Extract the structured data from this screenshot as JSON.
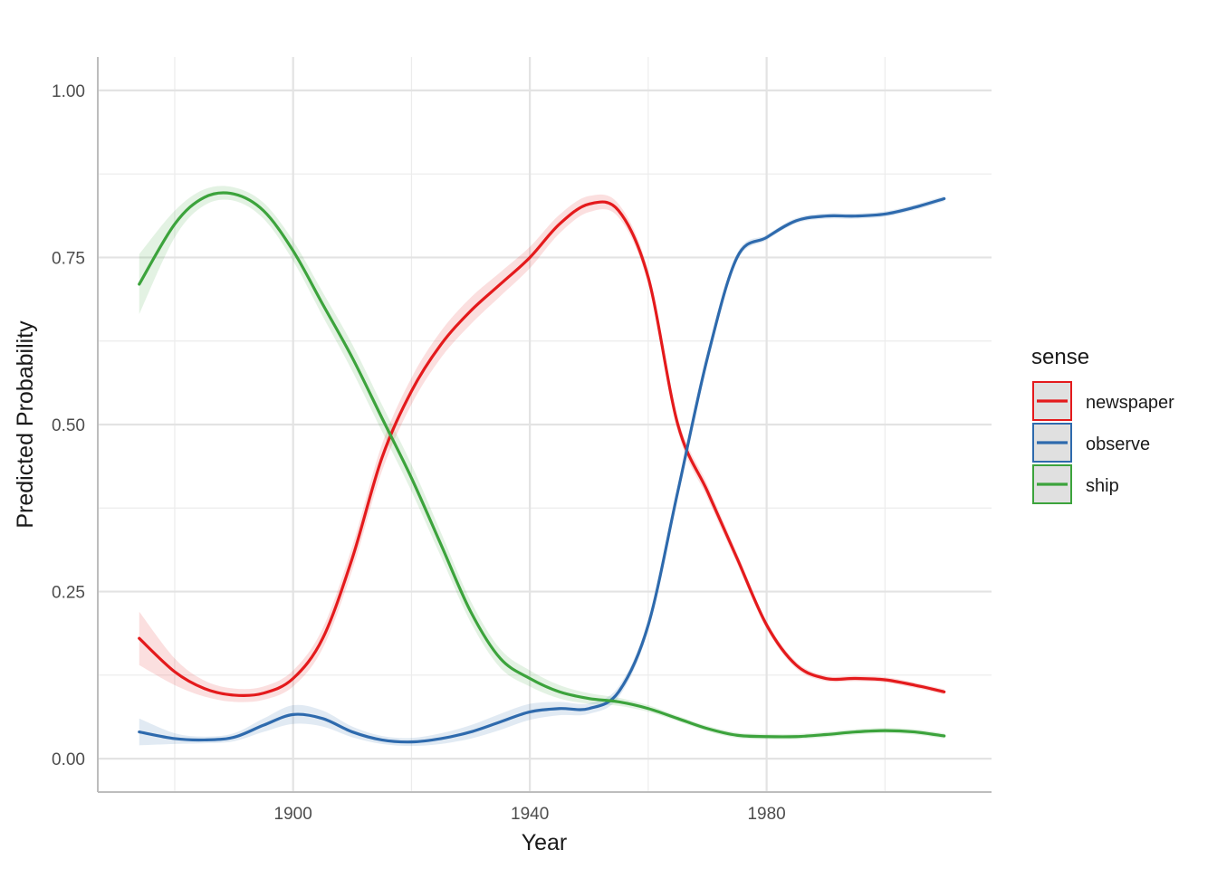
{
  "chart_data": {
    "type": "line",
    "title": "",
    "xlabel": "Year",
    "ylabel": "Predicted Probability",
    "xlim": [
      1867,
      2018
    ],
    "ylim": [
      -0.05,
      1.05
    ],
    "x_ticks": [
      1900,
      1940,
      1980
    ],
    "x_tick_labels": [
      "1900",
      "1940",
      "1980"
    ],
    "y_ticks": [
      0,
      0.25,
      0.5,
      0.75,
      1.0
    ],
    "y_tick_labels": [
      "0.00",
      "0.25",
      "0.50",
      "0.75",
      "1.00"
    ],
    "grid": true,
    "legend": {
      "title": "sense",
      "position": "right"
    },
    "x": [
      1874,
      1880,
      1885,
      1890,
      1895,
      1900,
      1905,
      1910,
      1915,
      1920,
      1925,
      1930,
      1935,
      1940,
      1945,
      1950,
      1955,
      1960,
      1965,
      1970,
      1975,
      1980,
      1985,
      1990,
      1995,
      2000,
      2005,
      2010
    ],
    "series": [
      {
        "name": "newspaper",
        "color": "#e41a1c",
        "values": [
          0.18,
          0.13,
          0.105,
          0.095,
          0.098,
          0.12,
          0.18,
          0.3,
          0.45,
          0.55,
          0.62,
          0.67,
          0.71,
          0.75,
          0.8,
          0.83,
          0.82,
          0.72,
          0.5,
          0.4,
          0.3,
          0.2,
          0.14,
          0.12,
          0.12,
          0.118,
          0.11,
          0.1
        ],
        "ci_width": [
          0.04,
          0.02,
          0.012,
          0.01,
          0.01,
          0.012,
          0.015,
          0.018,
          0.02,
          0.02,
          0.02,
          0.02,
          0.018,
          0.016,
          0.014,
          0.012,
          0.01,
          0.01,
          0.01,
          0.01,
          0.008,
          0.006,
          0.005,
          0.004,
          0.004,
          0.004,
          0.004,
          0.004
        ]
      },
      {
        "name": "observe",
        "color": "#2e6aad",
        "values": [
          0.04,
          0.03,
          0.028,
          0.032,
          0.05,
          0.066,
          0.06,
          0.04,
          0.028,
          0.025,
          0.03,
          0.04,
          0.055,
          0.07,
          0.075,
          0.075,
          0.1,
          0.2,
          0.4,
          0.6,
          0.75,
          0.78,
          0.805,
          0.812,
          0.812,
          0.815,
          0.825,
          0.838
        ],
        "ci_width": [
          0.02,
          0.008,
          0.005,
          0.006,
          0.01,
          0.014,
          0.012,
          0.008,
          0.006,
          0.006,
          0.008,
          0.01,
          0.012,
          0.012,
          0.01,
          0.008,
          0.008,
          0.008,
          0.008,
          0.008,
          0.006,
          0.004,
          0.004,
          0.004,
          0.004,
          0.004,
          0.004,
          0.004
        ]
      },
      {
        "name": "ship",
        "color": "#3ca33c",
        "values": [
          0.71,
          0.8,
          0.84,
          0.845,
          0.82,
          0.76,
          0.68,
          0.6,
          0.51,
          0.42,
          0.32,
          0.22,
          0.15,
          0.12,
          0.1,
          0.09,
          0.085,
          0.075,
          0.06,
          0.045,
          0.035,
          0.033,
          0.033,
          0.036,
          0.04,
          0.042,
          0.04,
          0.034
        ],
        "ci_width": [
          0.045,
          0.02,
          0.012,
          0.01,
          0.012,
          0.015,
          0.018,
          0.02,
          0.02,
          0.02,
          0.018,
          0.016,
          0.014,
          0.012,
          0.01,
          0.008,
          0.006,
          0.005,
          0.004,
          0.004,
          0.004,
          0.004,
          0.004,
          0.004,
          0.004,
          0.004,
          0.004,
          0.004
        ]
      }
    ]
  }
}
